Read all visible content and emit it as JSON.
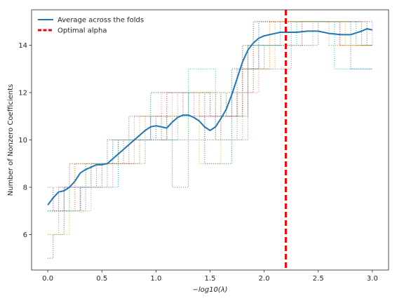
{
  "chart_data": {
    "type": "line",
    "title": "",
    "xlabel": "−log10(λ)",
    "ylabel": "Number of Nonzero Coefficients",
    "xlim": [
      -0.15,
      3.15
    ],
    "ylim": [
      4.5,
      15.5
    ],
    "xticks": [
      0.0,
      0.5,
      1.0,
      1.5,
      2.0,
      2.5,
      3.0
    ],
    "xtick_labels": [
      "0.0",
      "0.5",
      "1.0",
      "1.5",
      "2.0",
      "2.5",
      "3.0"
    ],
    "yticks": [
      6,
      8,
      10,
      12,
      14
    ],
    "ytick_labels": [
      "6",
      "8",
      "10",
      "12",
      "14"
    ],
    "grid": false,
    "legend_position": "top-left",
    "series": [
      {
        "name": "Average across the folds",
        "color": "#1f77b4",
        "style": "solid",
        "x": [
          0.0,
          0.05,
          0.1,
          0.15,
          0.2,
          0.25,
          0.3,
          0.35,
          0.4,
          0.45,
          0.5,
          0.55,
          0.6,
          0.65,
          0.7,
          0.75,
          0.8,
          0.85,
          0.9,
          0.95,
          1.0,
          1.05,
          1.1,
          1.15,
          1.2,
          1.25,
          1.3,
          1.35,
          1.4,
          1.45,
          1.5,
          1.55,
          1.6,
          1.65,
          1.7,
          1.75,
          1.8,
          1.85,
          1.9,
          1.95,
          2.0,
          2.05,
          2.1,
          2.15,
          2.2,
          2.3,
          2.4,
          2.5,
          2.6,
          2.65,
          2.7,
          2.8,
          2.9,
          2.95,
          3.0
        ],
        "y": [
          7.25,
          7.55,
          7.8,
          7.85,
          8.0,
          8.25,
          8.6,
          8.75,
          8.85,
          8.95,
          8.95,
          9.0,
          9.2,
          9.4,
          9.6,
          9.8,
          10.0,
          10.2,
          10.4,
          10.55,
          10.6,
          10.55,
          10.5,
          10.75,
          10.95,
          11.05,
          11.05,
          10.95,
          10.8,
          10.55,
          10.4,
          10.55,
          10.9,
          11.3,
          11.9,
          12.6,
          13.3,
          13.8,
          14.1,
          14.3,
          14.4,
          14.45,
          14.5,
          14.55,
          14.55,
          14.55,
          14.6,
          14.6,
          14.5,
          14.48,
          14.45,
          14.45,
          14.6,
          14.7,
          14.65
        ]
      },
      {
        "name": "Optimal alpha",
        "color": "#ff0000",
        "style": "dashed",
        "x_value": 2.2
      }
    ],
    "folds": {
      "style": "dotted",
      "x_min": 0.0,
      "x_max": 3.0,
      "thresholds": [
        {
          "count": 5,
          "color": "#1f77b4",
          "steps": [
            [
              0.0,
              5.0
            ],
            [
              0.05,
              6.0
            ],
            [
              0.15,
              8.0
            ],
            [
              0.4,
              9.0
            ],
            [
              0.6,
              10.0
            ],
            [
              0.95,
              12.0
            ],
            [
              1.45,
              9.0
            ],
            [
              1.7,
              13.0
            ],
            [
              1.95,
              15.0
            ],
            [
              2.8,
              13.0
            ]
          ]
        },
        {
          "count": 6,
          "color": "#ff7f0e",
          "steps": [
            [
              0.0,
              6.0
            ],
            [
              0.1,
              7.0
            ],
            [
              0.25,
              9.0
            ],
            [
              0.65,
              10.0
            ],
            [
              0.9,
              11.0
            ],
            [
              1.2,
              12.0
            ],
            [
              1.55,
              10.0
            ],
            [
              1.8,
              13.0
            ],
            [
              2.05,
              15.0
            ],
            [
              2.6,
              14.0
            ]
          ]
        },
        {
          "count": 7,
          "color": "#2ca02c",
          "steps": [
            [
              0.0,
              7.0
            ],
            [
              0.2,
              8.0
            ],
            [
              0.35,
              9.0
            ],
            [
              0.75,
              11.0
            ],
            [
              1.05,
              10.0
            ],
            [
              1.3,
              12.0
            ],
            [
              1.65,
              11.0
            ],
            [
              1.85,
              14.0
            ],
            [
              2.15,
              15.0
            ],
            [
              2.9,
              14.0
            ]
          ]
        },
        {
          "count": 8,
          "color": "#d62728",
          "steps": [
            [
              0.0,
              8.0
            ],
            [
              0.05,
              7.0
            ],
            [
              0.3,
              8.0
            ],
            [
              0.5,
              9.0
            ],
            [
              0.85,
              10.0
            ],
            [
              1.1,
              12.0
            ],
            [
              1.4,
              11.0
            ],
            [
              1.75,
              12.0
            ],
            [
              1.9,
              15.0
            ],
            [
              2.7,
              14.0
            ]
          ]
        },
        {
          "count": 9,
          "color": "#9467bd",
          "steps": [
            [
              0.0,
              7.0
            ],
            [
              0.15,
              8.0
            ],
            [
              0.45,
              9.0
            ],
            [
              0.7,
              10.0
            ],
            [
              1.0,
              11.0
            ],
            [
              1.15,
              8.0
            ],
            [
              1.3,
              10.0
            ],
            [
              1.6,
              12.0
            ],
            [
              1.85,
              13.0
            ],
            [
              2.25,
              15.0
            ]
          ]
        },
        {
          "count": 10,
          "color": "#8c564b",
          "steps": [
            [
              0.0,
              7.0
            ],
            [
              0.1,
              8.0
            ],
            [
              0.2,
              9.0
            ],
            [
              0.55,
              10.0
            ],
            [
              0.95,
              11.0
            ],
            [
              1.25,
              12.0
            ],
            [
              1.5,
              11.0
            ],
            [
              1.8,
              14.0
            ],
            [
              2.35,
              15.0
            ],
            [
              2.95,
              14.0
            ]
          ]
        },
        {
          "count": 11,
          "color": "#e377c2",
          "steps": [
            [
              0.0,
              8.0
            ],
            [
              0.25,
              8.0
            ],
            [
              0.6,
              9.0
            ],
            [
              0.8,
              11.0
            ],
            [
              1.05,
              12.0
            ],
            [
              1.35,
              11.0
            ],
            [
              1.7,
              12.0
            ],
            [
              1.95,
              14.0
            ],
            [
              2.45,
              15.0
            ],
            [
              3.0,
              14.0
            ]
          ]
        },
        {
          "count": 12,
          "color": "#7f7f7f",
          "steps": [
            [
              0.0,
              7.0
            ],
            [
              0.35,
              8.0
            ],
            [
              0.55,
              9.0
            ],
            [
              0.9,
              10.0
            ],
            [
              1.1,
              11.0
            ],
            [
              1.45,
              10.0
            ],
            [
              1.75,
              13.0
            ],
            [
              2.0,
              14.0
            ],
            [
              2.5,
              15.0
            ],
            [
              2.85,
              14.0
            ]
          ]
        },
        {
          "count": 13,
          "color": "#bcbd22",
          "steps": [
            [
              0.0,
              6.0
            ],
            [
              0.2,
              7.0
            ],
            [
              0.4,
              9.0
            ],
            [
              0.85,
              11.0
            ],
            [
              1.15,
              12.0
            ],
            [
              1.4,
              9.0
            ],
            [
              1.6,
              12.0
            ],
            [
              1.9,
              13.0
            ],
            [
              2.1,
              15.0
            ],
            [
              2.75,
              14.0
            ]
          ]
        },
        {
          "count": 14,
          "color": "#17becf",
          "steps": [
            [
              0.0,
              7.0
            ],
            [
              0.3,
              8.0
            ],
            [
              0.65,
              10.0
            ],
            [
              0.95,
              10.0
            ],
            [
              1.2,
              11.0
            ],
            [
              1.3,
              13.0
            ],
            [
              1.55,
              10.0
            ],
            [
              1.85,
              14.0
            ],
            [
              2.3,
              15.0
            ],
            [
              2.65,
              13.0
            ]
          ]
        }
      ]
    }
  }
}
